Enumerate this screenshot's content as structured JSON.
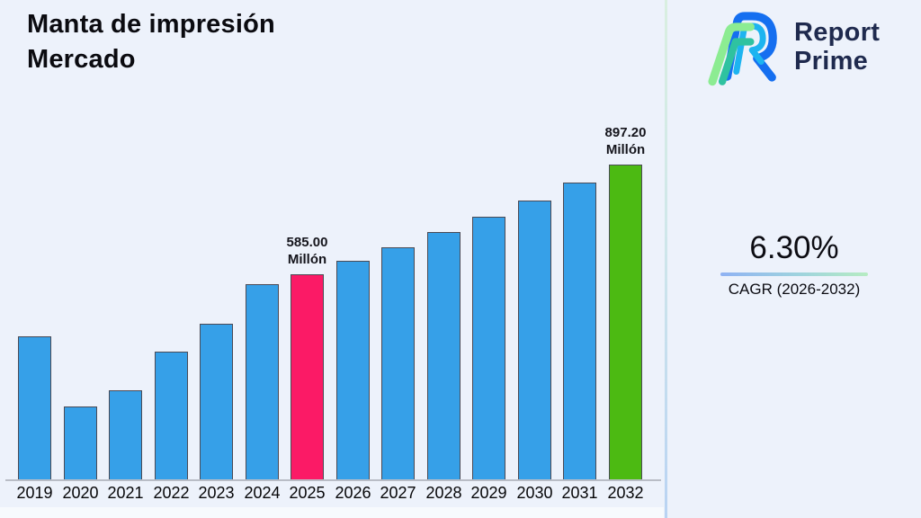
{
  "page": {
    "background": "#edf2fb"
  },
  "title": {
    "line1": "Manta de impresión",
    "line2": "Mercado"
  },
  "logo": {
    "word1": "Report",
    "word2": "Prime",
    "icon_name": "report-prime-logo-icon",
    "text_color": "#1f2a4e",
    "icon_colors": {
      "blue": "#156ff0",
      "cyan": "#1db4f0",
      "green": "#8cec92",
      "teal": "#2fc2a0"
    }
  },
  "cagr": {
    "value": "6.30%",
    "label": "CAGR (2026-2032)"
  },
  "chart_data": {
    "type": "bar",
    "title": "Manta de impresión Mercado",
    "unit": "Millón",
    "categories": [
      "2019",
      "2020",
      "2021",
      "2022",
      "2023",
      "2024",
      "2025",
      "2026",
      "2027",
      "2028",
      "2029",
      "2030",
      "2031",
      "2032"
    ],
    "values": [
      406,
      207,
      253,
      364,
      443,
      556,
      585,
      622,
      661,
      703,
      747,
      794,
      844,
      897.2
    ],
    "ylim": [
      0,
      950
    ],
    "grid": false,
    "legend": false,
    "bar_color_default": "#36a0e8",
    "highlight_colors": {
      "2025": "#fb1a66",
      "2032": "#4cba12"
    },
    "value_labels": [
      {
        "category": "2025",
        "line1": "585.00",
        "line2": "Millón"
      },
      {
        "category": "2032",
        "line1": "897.20",
        "line2": "Millón"
      }
    ],
    "xlabel": "",
    "ylabel": ""
  }
}
